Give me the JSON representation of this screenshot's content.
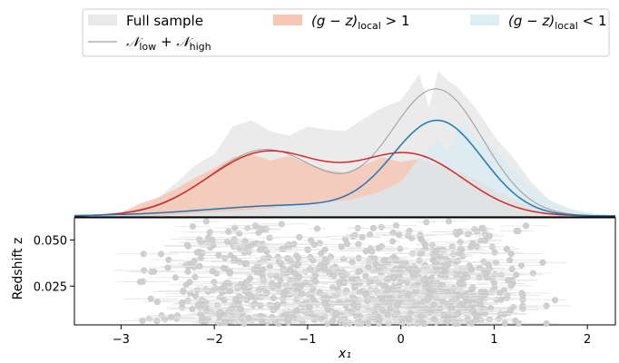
{
  "chart_data": [
    {
      "type": "area",
      "panel": "top",
      "xlim": [
        -3.5,
        2.3
      ],
      "legend": {
        "placement": "top",
        "entries": [
          {
            "key": "full",
            "text": "Full sample",
            "kind": "patch",
            "color": "#e9e9e9"
          },
          {
            "key": "sum",
            "text_parts": [
              "𝒩",
              "low",
              " + ",
              "𝒩",
              "high"
            ],
            "kind": "line",
            "color": "#8c8c8c"
          },
          {
            "key": "red",
            "text_parts": [
              "(g − z)",
              "local",
              " > 1"
            ],
            "kind": "patch",
            "color": "#f7c6b4"
          },
          {
            "key": "blue",
            "text_parts": [
              "(g − z)",
              "local",
              " < 1"
            ],
            "kind": "patch",
            "color": "#dcedf3"
          }
        ]
      },
      "series": [
        {
          "name": "Full sample",
          "kind": "filled histogram",
          "color": "#ebebeb",
          "x": [
            -3.0,
            -2.8,
            -2.6,
            -2.4,
            -2.2,
            -2.0,
            -1.8,
            -1.6,
            -1.4,
            -1.2,
            -1.0,
            -0.8,
            -0.6,
            -0.4,
            -0.2,
            0.0,
            0.2,
            0.3,
            0.4,
            0.5,
            0.6,
            0.8,
            1.0,
            1.2,
            1.4,
            1.6,
            1.8,
            2.0,
            2.2
          ],
          "y": [
            0.02,
            0.05,
            0.12,
            0.22,
            0.33,
            0.4,
            0.58,
            0.62,
            0.55,
            0.52,
            0.58,
            0.56,
            0.55,
            0.63,
            0.7,
            0.75,
            0.92,
            0.7,
            0.94,
            0.88,
            0.84,
            0.7,
            0.52,
            0.38,
            0.22,
            0.1,
            0.05,
            0.02,
            0.01
          ]
        },
        {
          "name": "(g − z)local > 1",
          "kind": "filled histogram",
          "color": "#f6c1ad",
          "x": [
            -3.0,
            -2.8,
            -2.6,
            -2.4,
            -2.2,
            -2.0,
            -1.8,
            -1.6,
            -1.4,
            -1.2,
            -1.0,
            -0.8,
            -0.6,
            -0.4,
            -0.2,
            0.0,
            0.2,
            0.4,
            0.6,
            0.8,
            1.0,
            1.2,
            1.4,
            1.6,
            1.8,
            2.0
          ],
          "y": [
            0.02,
            0.08,
            0.12,
            0.18,
            0.25,
            0.31,
            0.38,
            0.4,
            0.36,
            0.39,
            0.34,
            0.3,
            0.28,
            0.33,
            0.38,
            0.35,
            0.37,
            0.33,
            0.3,
            0.24,
            0.17,
            0.11,
            0.06,
            0.03,
            0.01,
            0.0
          ]
        },
        {
          "name": "(g − z)local < 1",
          "kind": "filled histogram",
          "color": "#d9ebf2",
          "x": [
            -2.6,
            -2.2,
            -1.8,
            -1.4,
            -1.0,
            -0.6,
            -0.3,
            0.0,
            0.2,
            0.4,
            0.5,
            0.6,
            0.7,
            0.8,
            1.0,
            1.2,
            1.4,
            1.6,
            1.8,
            2.0,
            2.2
          ],
          "y": [
            0.0,
            0.02,
            0.03,
            0.05,
            0.08,
            0.1,
            0.14,
            0.22,
            0.38,
            0.5,
            0.4,
            0.55,
            0.6,
            0.5,
            0.44,
            0.3,
            0.18,
            0.1,
            0.05,
            0.02,
            0.0
          ]
        },
        {
          "name": "𝒩low + 𝒩high",
          "kind": "line",
          "color": "#9a9a9a",
          "mu": [
            -1.45,
            0.38
          ],
          "sigma": [
            0.6,
            0.5
          ],
          "amp": [
            0.43,
            0.82
          ]
        },
        {
          "name": "(g − z)local > 1 model",
          "kind": "line",
          "color": "#d62728",
          "mu": [
            -1.45,
            0.1
          ],
          "sigma": [
            0.62,
            0.58
          ],
          "amp": [
            0.41,
            0.39
          ]
        },
        {
          "name": "(g − z)local < 1 model",
          "kind": "line",
          "color": "#1f77b4",
          "mu": [
            -1.1,
            0.4
          ],
          "sigma": [
            0.95,
            0.48
          ],
          "amp": [
            0.07,
            0.6
          ]
        }
      ]
    },
    {
      "type": "scatter",
      "panel": "bottom",
      "xlabel": "x₁",
      "ylabel": "Redshift z",
      "xlim": [
        -3.5,
        2.3
      ],
      "ylim": [
        0.004,
        0.062
      ],
      "xticks": [
        -3,
        -2,
        -1,
        0,
        1,
        2
      ],
      "xtick_labels": [
        "−3",
        "−2",
        "−1",
        "0",
        "1",
        "2"
      ],
      "yticks": [
        0.025,
        0.05
      ],
      "ytick_labels": [
        "0.025",
        "0.050"
      ],
      "point_color": "#cfcfcf",
      "point_count": 950,
      "points_x_range": [
        -2.9,
        2.0
      ],
      "points_z_range": [
        0.004,
        0.062
      ]
    }
  ]
}
